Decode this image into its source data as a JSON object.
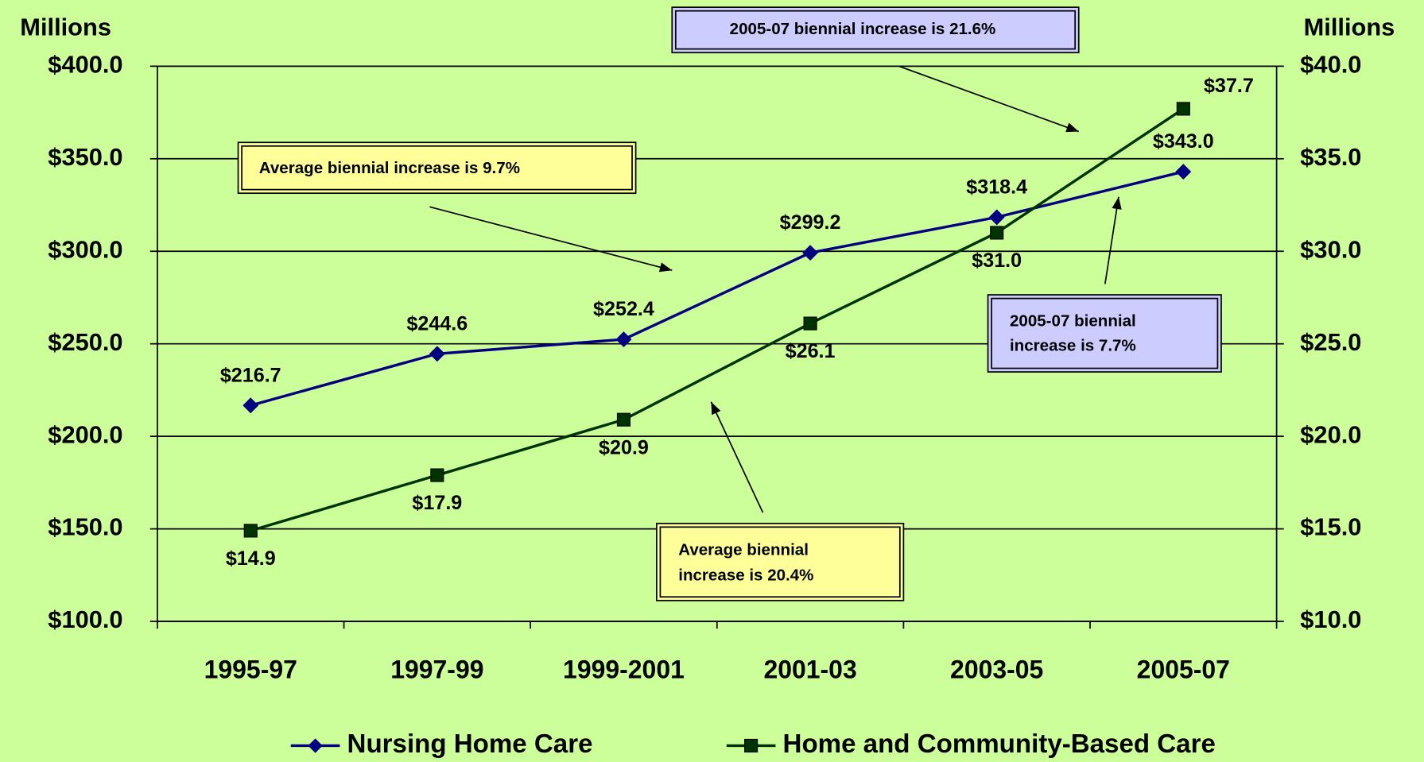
{
  "chart_data": {
    "type": "line",
    "ylabel": "Millions",
    "y2label": "Millions",
    "categories": [
      "1995-97",
      "1997-99",
      "1999-2001",
      "2001-03",
      "2003-05",
      "2005-07"
    ],
    "ylim": [
      100,
      400
    ],
    "yticks": [
      {
        "value": 100,
        "label": "$100.0"
      },
      {
        "value": 150,
        "label": "$150.0"
      },
      {
        "value": 200,
        "label": "$200.0"
      },
      {
        "value": 250,
        "label": "$250.0"
      },
      {
        "value": 300,
        "label": "$300.0"
      },
      {
        "value": 350,
        "label": "$350.0"
      },
      {
        "value": 400,
        "label": "$400.0"
      }
    ],
    "y2lim": [
      10,
      40
    ],
    "y2ticks": [
      {
        "value": 10,
        "label": "$10.0"
      },
      {
        "value": 15,
        "label": "$15.0"
      },
      {
        "value": 20,
        "label": "$20.0"
      },
      {
        "value": 25,
        "label": "$25.0"
      },
      {
        "value": 30,
        "label": "$30.0"
      },
      {
        "value": 35,
        "label": "$35.0"
      },
      {
        "value": 40,
        "label": "$40.0"
      }
    ],
    "grid": true,
    "legend": "bottom",
    "series": [
      {
        "name": "Nursing Home Care",
        "color": "#000080",
        "marker": "diamond",
        "values": [
          216.7,
          244.6,
          252.4,
          299.2,
          318.4,
          343.0
        ],
        "value_labels": [
          "$216.7",
          "$244.6",
          "$252.4",
          "$299.2",
          "$318.4",
          "$343.0"
        ]
      },
      {
        "name": "Home and Community-Based Care",
        "color": "#003300",
        "marker": "square",
        "axis": "y2",
        "values": [
          14.9,
          17.9,
          20.9,
          26.1,
          31.0,
          37.7
        ],
        "value_labels": [
          "$14.9",
          "$17.9",
          "$20.9",
          "$26.1",
          "$31.0",
          "$37.7"
        ]
      }
    ],
    "annotations": [
      {
        "lines": [
          "2005-07 biennial increase is 21.6%"
        ]
      },
      {
        "lines": [
          "Average biennial increase is 9.7%"
        ]
      },
      {
        "lines": [
          "2005-07 biennial",
          "increase is 7.7%"
        ]
      },
      {
        "lines": [
          "Average biennial",
          "increase is 20.4%"
        ]
      }
    ]
  }
}
